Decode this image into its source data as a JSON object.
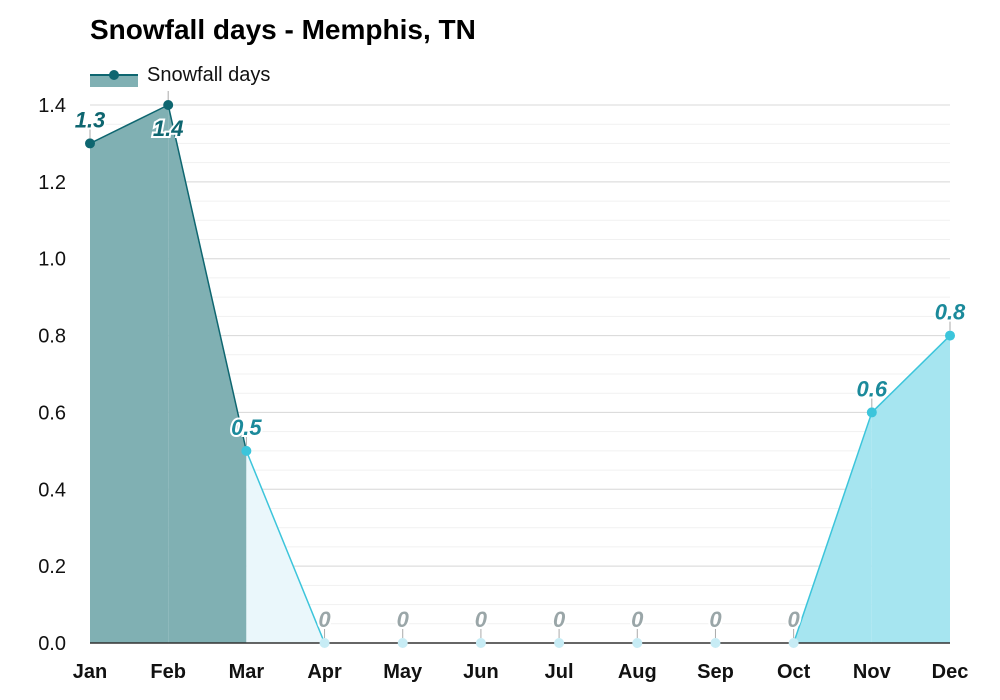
{
  "chart_data": {
    "type": "area",
    "title": "Snowfall days - Memphis, TN",
    "xlabel": "",
    "ylabel": "",
    "categories": [
      "Jan",
      "Feb",
      "Mar",
      "Apr",
      "May",
      "Jun",
      "Jul",
      "Aug",
      "Sep",
      "Oct",
      "Nov",
      "Dec"
    ],
    "series": [
      {
        "name": "Snowfall days",
        "values": [
          1.3,
          1.4,
          0.5,
          0,
          0,
          0,
          0,
          0,
          0,
          0,
          0.6,
          0.8
        ],
        "labels": [
          "1.3",
          "1.4",
          "0.5",
          "0",
          "0",
          "0",
          "0",
          "0",
          "0",
          "0",
          "0.6",
          "0.8"
        ]
      }
    ],
    "ylim": [
      0,
      1.4
    ],
    "yticks": [
      "0.0",
      "0.2",
      "0.4",
      "0.6",
      "0.8",
      "1.0",
      "1.2",
      "1.4"
    ],
    "grid": true,
    "legend_position": "top-left",
    "colors": {
      "high": "#0e6670",
      "high_fill": "#80b0b3",
      "mid": "#3cc5db",
      "mid_fill": "#a6e5f0",
      "low": "#c7ecf5",
      "low_fill": "#eaf7fb",
      "label_high": "#0e6670",
      "label_mid": "#1b8a9b",
      "label_zero": "#9aa6a8"
    }
  }
}
